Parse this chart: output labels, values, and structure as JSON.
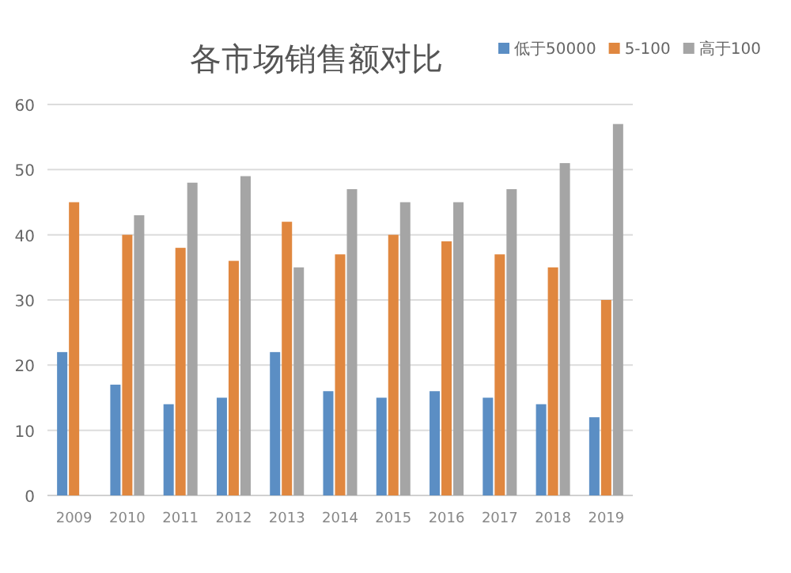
{
  "chart_data": {
    "type": "bar",
    "title": "各市场销售额对比",
    "categories": [
      "2009",
      "2010",
      "2011",
      "2012",
      "2013",
      "2014",
      "2015",
      "2016",
      "2017",
      "2018",
      "2019"
    ],
    "series": [
      {
        "name": "低于50000",
        "color": "#5b8ec4",
        "values": [
          22,
          17,
          14,
          15,
          22,
          16,
          15,
          16,
          15,
          14,
          12
        ]
      },
      {
        "name": "5-100",
        "color": "#e0873f",
        "values": [
          45,
          40,
          38,
          36,
          42,
          37,
          40,
          39,
          37,
          35,
          30
        ]
      },
      {
        "name": "高于100",
        "color": "#a5a5a5",
        "values": [
          null,
          43,
          48,
          49,
          35,
          47,
          45,
          45,
          47,
          51,
          57
        ]
      }
    ],
    "ylim": [
      0,
      60
    ],
    "yticks": [
      0,
      10,
      20,
      30,
      40,
      50,
      60
    ],
    "grid": "y",
    "legend": "top right"
  }
}
